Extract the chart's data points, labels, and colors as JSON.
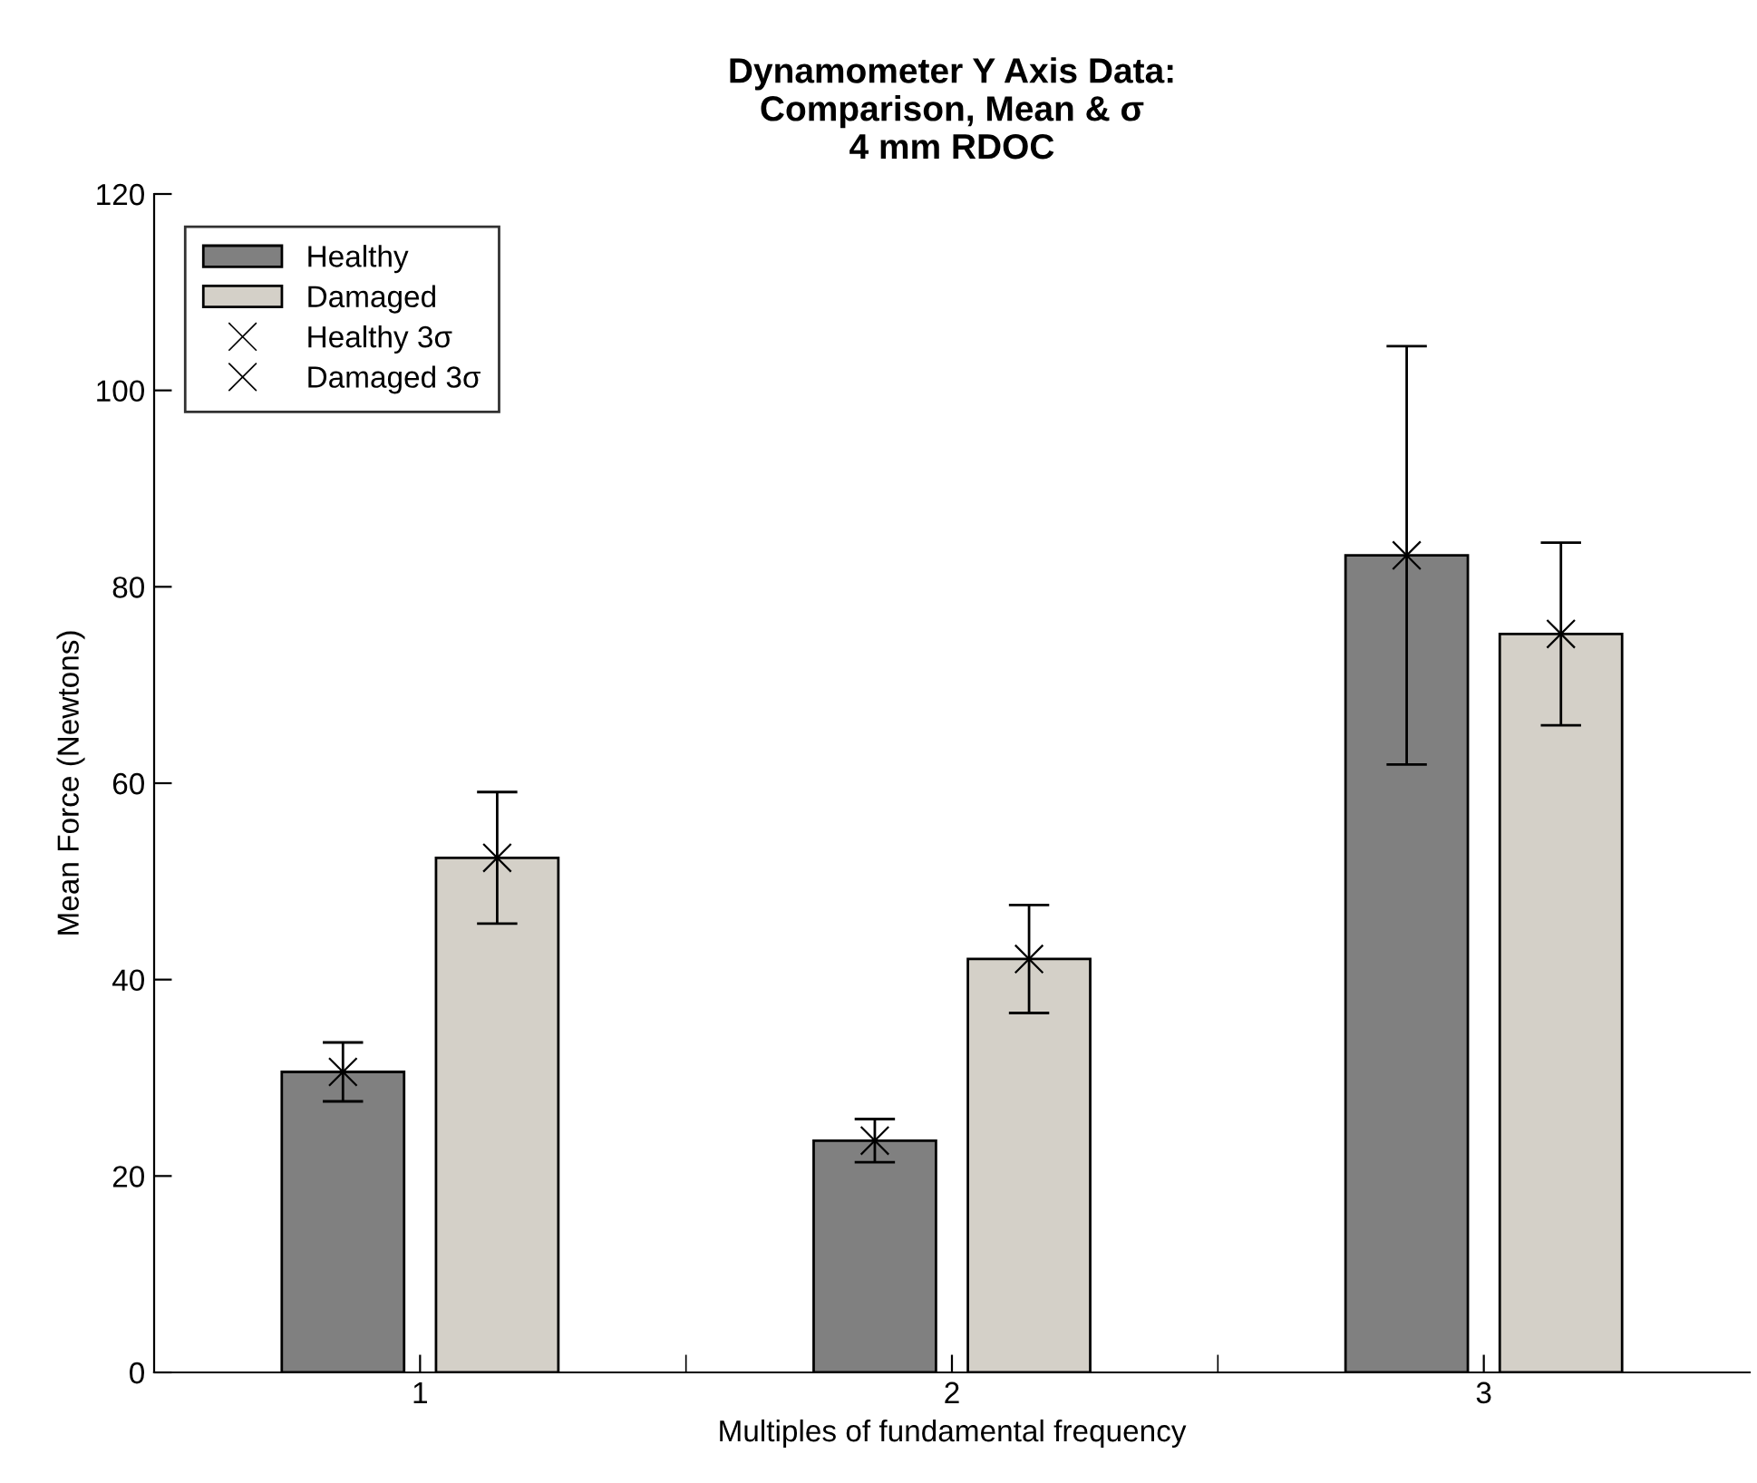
{
  "chart_data": {
    "type": "bar",
    "title": "Dynamometer Y Axis Data:\nComparison, Mean & σ\n4 mm RDOC",
    "xlabel": "Multiples of fundamental frequency",
    "ylabel": "Mean Force (Newtons)",
    "categories": [
      "1",
      "2",
      "3"
    ],
    "series": [
      {
        "name": "Healthy",
        "color": "#808080",
        "values": [
          30.6,
          23.6,
          83.2
        ],
        "errors": [
          3.0,
          2.2,
          21.3
        ]
      },
      {
        "name": "Damaged",
        "color": "#d4d0c8",
        "values": [
          52.4,
          42.1,
          75.2
        ],
        "errors": [
          6.7,
          5.5,
          9.3
        ]
      },
      {
        "name": "Healthy 3σ",
        "type": "scatter",
        "marker": "cross",
        "color": "#000000",
        "values": [
          30.6,
          23.6,
          83.2
        ]
      },
      {
        "name": "Damaged 3σ",
        "type": "scatter",
        "marker": "cross",
        "color": "#000000",
        "values": [
          52.4,
          42.1,
          75.2
        ]
      }
    ],
    "ylim": [
      0,
      120
    ],
    "yticks": [
      0,
      20,
      40,
      60,
      80,
      100,
      120
    ],
    "grid": false,
    "legend": "top left"
  }
}
